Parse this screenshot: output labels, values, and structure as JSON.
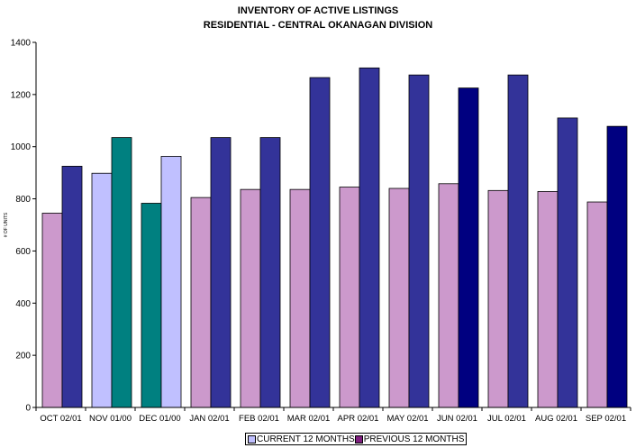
{
  "chart_data": {
    "type": "bar",
    "title": "INVENTORY OF ACTIVE LISTINGS",
    "subtitle": "RESIDENTIAL - CENTRAL OKANAGAN DIVISION",
    "xlabel": "",
    "ylabel": "# OF UNITS",
    "ylim": [
      0,
      1400
    ],
    "yticks": [
      0,
      200,
      400,
      600,
      800,
      1000,
      1200,
      1400
    ],
    "grid": false,
    "legend_position": "bottom",
    "categories": [
      "OCT 02/01",
      "NOV 01/00",
      "DEC 01/00",
      "JAN 02/01",
      "FEB 02/01",
      "MAR 02/01",
      "APR 02/01",
      "MAY 02/01",
      "JUN 02/01",
      "JUL 02/01",
      "AUG 02/01",
      "SEP 02/01"
    ],
    "series": [
      {
        "name": "CURRENT 12 MONTHS",
        "legend_color": "#c0c0ff",
        "values": [
          745,
          898,
          783,
          805,
          836,
          836,
          845,
          840,
          858,
          832,
          828,
          788
        ],
        "colors": [
          "#cc99cc",
          "#c0c0ff",
          "#008080",
          "#cc99cc",
          "#cc99cc",
          "#cc99cc",
          "#cc99cc",
          "#cc99cc",
          "#cc99cc",
          "#cc99cc",
          "#cc99cc",
          "#cc99cc"
        ]
      },
      {
        "name": "PREVIOUS 12 MONTHS",
        "legend_color": "#7f1f7f",
        "values": [
          925,
          1035,
          963,
          1035,
          1035,
          1265,
          1302,
          1275,
          1225,
          1275,
          1110,
          1078
        ],
        "colors": [
          "#333399",
          "#008080",
          "#c0c0ff",
          "#333399",
          "#333399",
          "#333399",
          "#333399",
          "#333399",
          "#000080",
          "#333399",
          "#333399",
          "#000080"
        ]
      }
    ]
  }
}
